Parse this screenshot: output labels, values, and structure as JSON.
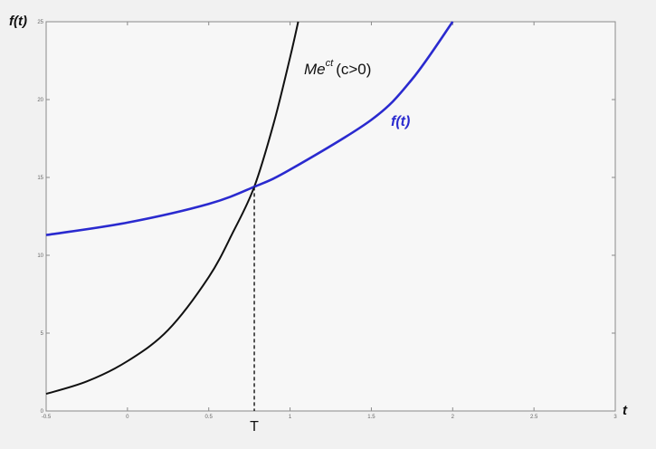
{
  "chart_data": {
    "type": "line",
    "xlabel": "t",
    "ylabel": "f(t)",
    "xlim": [
      -0.5,
      3
    ],
    "ylim": [
      0,
      25
    ],
    "grid": false,
    "x_ticks": [
      -0.5,
      0,
      0.5,
      1,
      1.5,
      2,
      2.5,
      3
    ],
    "x_tick_labels": [
      "-0.5",
      "0",
      "0.5",
      "1",
      "1.5",
      "2",
      "2.5",
      "3"
    ],
    "y_ticks": [
      0,
      5,
      10,
      15,
      20,
      25
    ],
    "y_tick_labels": [
      "0",
      "5",
      "10",
      "15",
      "20",
      "25"
    ],
    "series": [
      {
        "name": "Me^ct (c>0)",
        "color": "#111111",
        "x": [
          -0.5,
          -0.25,
          0,
          0.25,
          0.5,
          0.65,
          0.78,
          0.9,
          1.0,
          1.05
        ],
        "y": [
          1.1,
          1.9,
          3.2,
          5.2,
          8.6,
          11.5,
          14.4,
          18.5,
          22.7,
          25.0
        ]
      },
      {
        "name": "f(t)",
        "color": "#2a2acf",
        "x": [
          -0.5,
          0,
          0.5,
          0.78,
          1,
          1.5,
          1.75,
          2.0
        ],
        "y": [
          11.3,
          12.1,
          13.3,
          14.4,
          15.5,
          18.7,
          21.3,
          25.0
        ]
      }
    ],
    "annotations": {
      "curve_label_base": "Me",
      "curve_label_sup": "ct",
      "curve_label_rest": "(c>0)",
      "ft_label": "f(t)",
      "marker_label": "T",
      "intersection": {
        "x": 0.78,
        "y": 14.4
      }
    }
  }
}
